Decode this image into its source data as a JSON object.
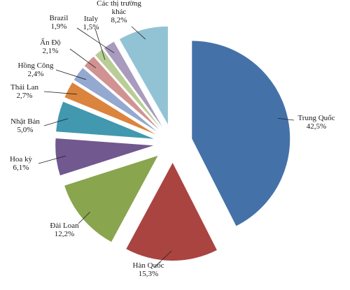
{
  "chart_data": {
    "type": "pie",
    "exploded": true,
    "start_angle_deg": 0,
    "direction": "clockwise",
    "slices": [
      {
        "name": "Trung Quốc",
        "value": 42.5,
        "label": "42,5%",
        "color": "#4472A8"
      },
      {
        "name": "Hàn Quốc",
        "value": 15.3,
        "label": "15,3%",
        "color": "#AA4441"
      },
      {
        "name": "Đài Loan",
        "value": 12.2,
        "label": "12,2%",
        "color": "#89A54E"
      },
      {
        "name": "Hoa kỳ",
        "value": 6.1,
        "label": "6,1%",
        "color": "#71588F"
      },
      {
        "name": "Nhật Bản",
        "value": 5.0,
        "label": "5,0%",
        "color": "#4198AF"
      },
      {
        "name": "Thái Lan",
        "value": 2.7,
        "label": "2,7%",
        "color": "#DB843D"
      },
      {
        "name": "Hồng Công",
        "value": 2.4,
        "label": "2,4%",
        "color": "#93A9CF"
      },
      {
        "name": "Ấn Độ",
        "value": 2.1,
        "label": "2,1%",
        "color": "#D19392"
      },
      {
        "name": "Italy",
        "value": 1.5,
        "label": "1,5%",
        "color": "#B9CD96"
      },
      {
        "name": "Brazil",
        "value": 1.9,
        "label": "1,9%",
        "color": "#A99BBD"
      },
      {
        "name": "Các thị trường khác",
        "value": 8.2,
        "label": "8,2%",
        "color": "#92C3D5",
        "name_lines": [
          "Các thị trường",
          "khác"
        ]
      }
    ]
  }
}
